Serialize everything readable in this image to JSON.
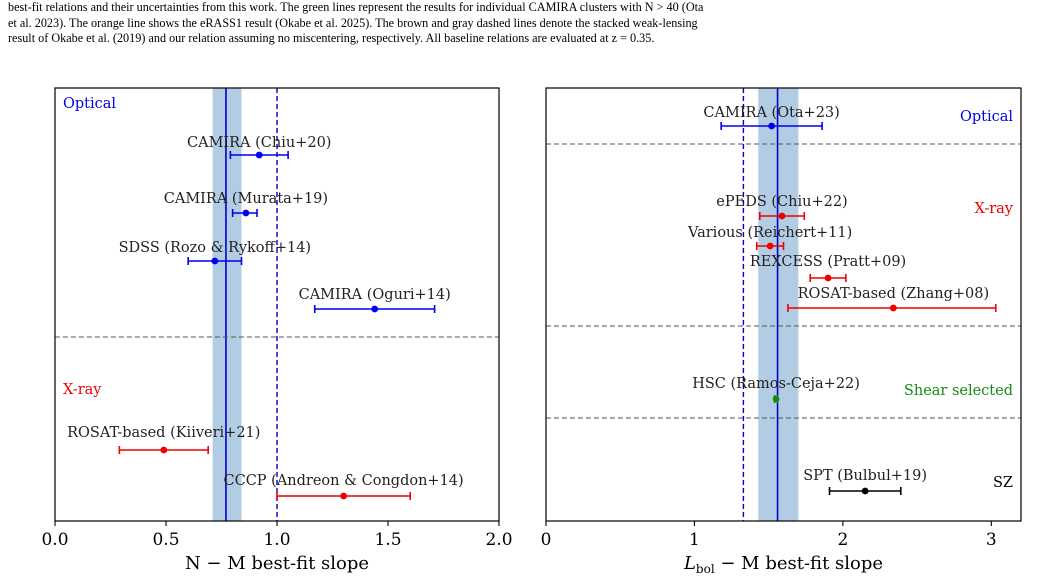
{
  "caption": {
    "lines": [
      "best-fit relations and their uncertainties from this work. The green lines represent the results for individual CAMIRA clusters with N > 40 (Ota",
      "et al. 2023). The orange line shows the eRASS1 result (Okabe et al. 2025). The brown and gray dashed lines denote the stacked weak-lensing",
      "result of Okabe et al. (2019) and our relation assuming no miscentering, respectively. All baseline relations are evaluated at z = 0.35."
    ]
  },
  "colors": {
    "optical": "#0000ee",
    "xray": "#ee0000",
    "shear": "#138a13",
    "sz": "#000000",
    "band": "#b2cde3",
    "baseline": "#0000cc",
    "separator": "#555555"
  },
  "chart_data": [
    {
      "type": "scatter",
      "subtype": "errorbar-forest",
      "xlabel": "N − M best-fit slope",
      "xlim": [
        0.0,
        2.0
      ],
      "xticks": [
        "0.0",
        "0.5",
        "1.0",
        "1.5",
        "2.0"
      ],
      "xtick_values": [
        0.0,
        0.5,
        1.0,
        1.5,
        2.0
      ],
      "this_work": {
        "value": 0.77,
        "band": [
          0.71,
          0.84
        ]
      },
      "dashed_line": 1.0,
      "groups": [
        {
          "label": "Optical",
          "color": "optical",
          "label_side": "left"
        },
        {
          "label": "X-ray",
          "color": "xray",
          "label_side": "left"
        }
      ],
      "series": [
        {
          "label": "CAMIRA (Chiu+20)",
          "group": 0,
          "value": 0.92,
          "err": [
            0.79,
            1.05
          ]
        },
        {
          "label": "CAMIRA (Murata+19)",
          "group": 0,
          "value": 0.86,
          "err": [
            0.8,
            0.91
          ]
        },
        {
          "label": "SDSS (Rozo & Rykoff+14)",
          "group": 0,
          "value": 0.72,
          "err": [
            0.6,
            0.84
          ]
        },
        {
          "label": "CAMIRA (Oguri+14)",
          "group": 0,
          "value": 1.44,
          "err": [
            1.17,
            1.71
          ]
        },
        {
          "label": "ROSAT-based (Kiiveri+21)",
          "group": 1,
          "value": 0.49,
          "err": [
            0.29,
            0.69
          ]
        },
        {
          "label": "CCCP (Andreon & Congdon+14)",
          "group": 1,
          "value": 1.3,
          "err": [
            1.0,
            1.6
          ]
        }
      ]
    },
    {
      "type": "scatter",
      "subtype": "errorbar-forest",
      "xlabel_main": "L",
      "xlabel_sub": "bol",
      "xlabel_rest": " − M best-fit slope",
      "xlim": [
        0.0,
        3.2
      ],
      "xticks": [
        "0",
        "1",
        "2",
        "3"
      ],
      "xtick_values": [
        0,
        1,
        2,
        3
      ],
      "this_work": {
        "value": 1.56,
        "band": [
          1.43,
          1.7
        ]
      },
      "dashed_line": 1.33,
      "groups": [
        {
          "label": "Optical",
          "color": "optical",
          "label_side": "right"
        },
        {
          "label": "X-ray",
          "color": "xray",
          "label_side": "right"
        },
        {
          "label": "Shear selected",
          "color": "shear",
          "label_side": "right"
        },
        {
          "label": "SZ",
          "color": "sz",
          "label_side": "right"
        }
      ],
      "series": [
        {
          "label": "CAMIRA (Ota+23)",
          "group": 0,
          "value": 1.52,
          "err": [
            1.18,
            1.86
          ]
        },
        {
          "label": "ePEDS (Chiu+22)",
          "group": 1,
          "value": 1.59,
          "err": [
            1.44,
            1.74
          ]
        },
        {
          "label": "Various (Reichert+11)",
          "group": 1,
          "value": 1.51,
          "err": [
            1.42,
            1.6
          ]
        },
        {
          "label": "REXCESS (Pratt+09)",
          "group": 1,
          "value": 1.9,
          "err": [
            1.78,
            2.02
          ]
        },
        {
          "label": "ROSAT-based (Zhang+08)",
          "group": 1,
          "value": 2.34,
          "err": [
            1.63,
            3.03
          ]
        },
        {
          "label": "HSC (Ramos-Ceja+22)",
          "group": 2,
          "value": 1.55,
          "err": [
            1.54,
            1.56
          ]
        },
        {
          "label": "SPT (Bulbul+19)",
          "group": 3,
          "value": 2.15,
          "err": [
            1.91,
            2.39
          ]
        }
      ]
    }
  ]
}
